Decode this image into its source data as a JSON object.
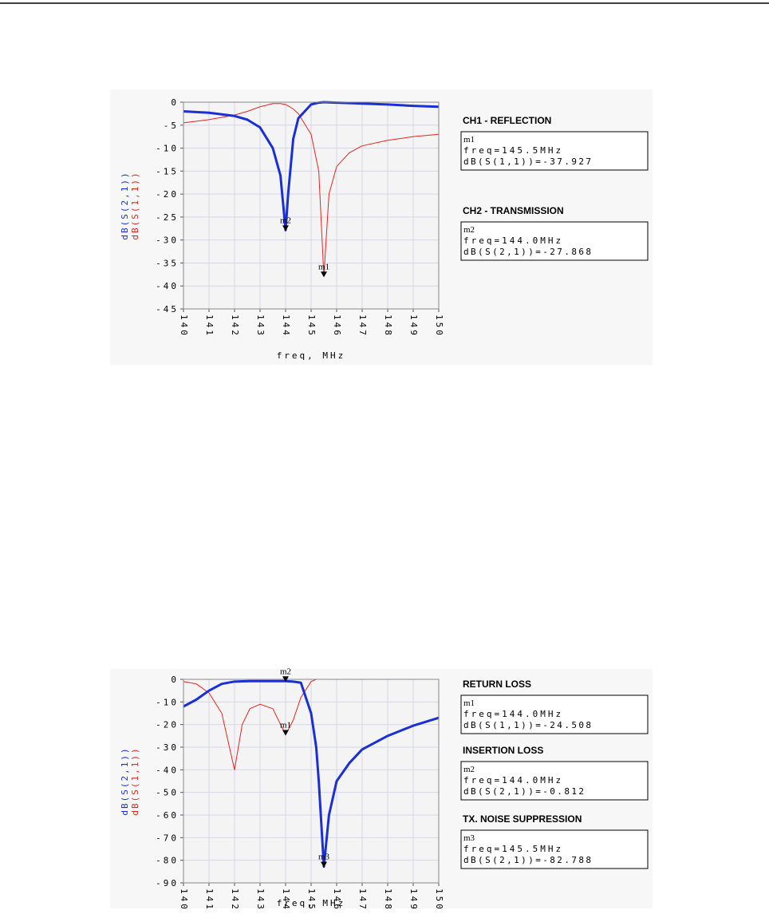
{
  "chart_data": [
    {
      "type": "line",
      "xlabel": "freq, MHz",
      "x": [
        140,
        141,
        142,
        142.5,
        143,
        143.5,
        143.8,
        144,
        144.1,
        144.3,
        144.5,
        145,
        145.3,
        145.5,
        145.7,
        146,
        146.5,
        147,
        148,
        149,
        150
      ],
      "series": [
        {
          "name": "dB(S(2,1))",
          "color": "#1a2fd6",
          "values": [
            -2,
            -2.3,
            -3,
            -3.8,
            -5.5,
            -10,
            -16,
            -27.868,
            -20,
            -8,
            -3.5,
            -0.5,
            -0.1,
            0,
            -0.05,
            -0.1,
            -0.2,
            -0.3,
            -0.5,
            -0.8,
            -1
          ]
        },
        {
          "name": "dB(S(1,1))",
          "color": "#e8231f",
          "values": [
            -4.5,
            -3.8,
            -2.8,
            -2,
            -1,
            -0.3,
            -0.3,
            -0.5,
            -0.8,
            -1.5,
            -2.5,
            -7,
            -15,
            -37.927,
            -20,
            -14,
            -11,
            -9.5,
            -8.3,
            -7.5,
            -7
          ]
        }
      ],
      "xlim": [
        140,
        150
      ],
      "xticks": [
        140,
        141,
        142,
        143,
        144,
        145,
        146,
        147,
        148,
        149,
        150
      ],
      "ylim": [
        -45,
        0
      ],
      "yticks": [
        0,
        -5,
        -10,
        -15,
        -20,
        -25,
        -30,
        -35,
        -40,
        -45
      ],
      "grid": true,
      "markers": [
        {
          "name": "m2",
          "x": 144.0,
          "y": -27.868,
          "title": "CH2 - TRANSMISSION",
          "freq": "freq=144.0MHz",
          "result": "dB(S(2,1))=-27.868"
        },
        {
          "name": "m1",
          "x": 145.5,
          "y": -37.927,
          "title": "CH1 - REFLECTION",
          "freq": "freq=145.5MHz",
          "result": "dB(S(1,1))=-37.927"
        }
      ]
    },
    {
      "type": "line",
      "xlabel": "freq, MHz",
      "x": [
        140,
        140.5,
        141,
        141.5,
        142,
        142.3,
        142.6,
        143,
        143.5,
        144,
        144.3,
        144.6,
        145,
        145.2,
        145.3,
        145.5,
        145.7,
        146,
        146.5,
        147,
        148,
        149,
        150
      ],
      "series": [
        {
          "name": "dB(S(2,1))",
          "color": "#1a2fd6",
          "values": [
            -12,
            -9,
            -5,
            -2,
            -1,
            -0.9,
            -0.8,
            -0.8,
            -0.8,
            -0.812,
            -1,
            -1.5,
            -15,
            -30,
            -45,
            -82.788,
            -60,
            -45,
            -37,
            -31,
            -25,
            -20.5,
            -17
          ]
        },
        {
          "name": "dB(S(1,1))",
          "color": "#e8231f",
          "values": [
            -1,
            -2,
            -6,
            -15,
            -40,
            -20,
            -13,
            -11,
            -13,
            -24.508,
            -18,
            -8,
            -1,
            0,
            0,
            0,
            0,
            0,
            0,
            0,
            0,
            0,
            0
          ]
        }
      ],
      "xlim": [
        140,
        150
      ],
      "xticks": [
        140,
        141,
        142,
        143,
        144,
        145,
        146,
        147,
        148,
        149,
        150
      ],
      "ylim": [
        -90,
        0
      ],
      "yticks": [
        0,
        -10,
        -20,
        -30,
        -40,
        -50,
        -60,
        -70,
        -80,
        -90
      ],
      "grid": true,
      "markers": [
        {
          "name": "m1",
          "x": 144.0,
          "y": -24.508,
          "title": "RETURN LOSS",
          "freq": "freq=144.0MHz",
          "result": "dB(S(1,1))=-24.508"
        },
        {
          "name": "m2",
          "x": 144.0,
          "y": -0.812,
          "title": "INSERTION LOSS",
          "freq": "freq=144.0MHz",
          "result": "dB(S(2,1))=-0.812"
        },
        {
          "name": "m3",
          "x": 145.5,
          "y": -82.788,
          "title": "TX. NOISE SUPPRESSION",
          "freq": "freq=145.5MHz",
          "result": "dB(S(2,1))=-82.788"
        }
      ]
    }
  ]
}
